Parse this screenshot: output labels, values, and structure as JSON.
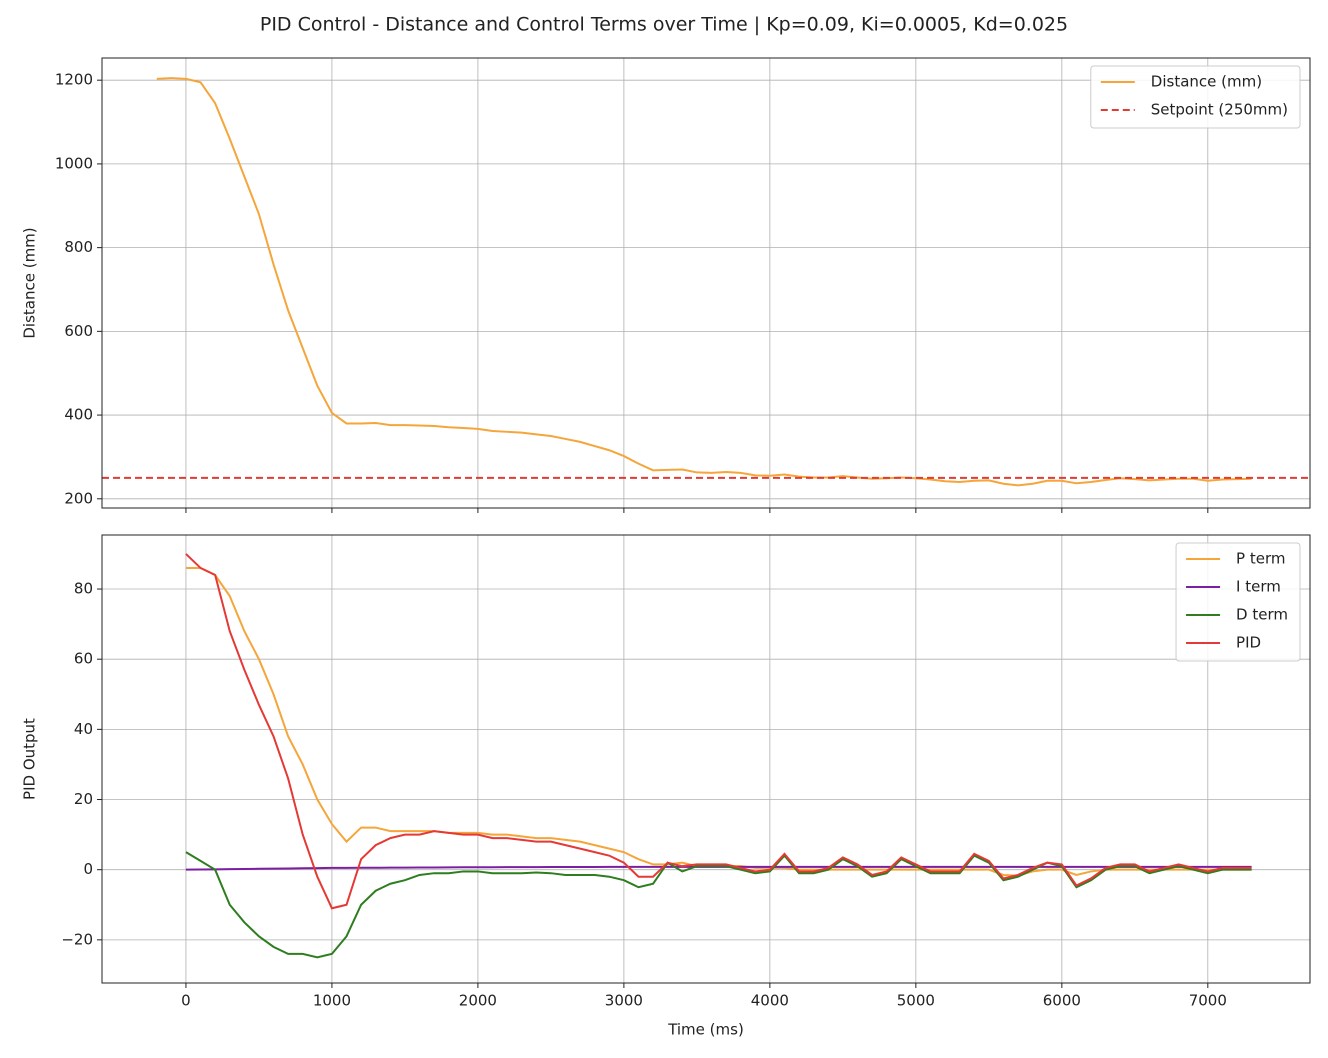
{
  "chart_data": [
    {
      "type": "line",
      "title": "PID Control - Distance and Control Terms over Time | Kp=0.09, Ki=0.0005, Kd=0.025",
      "ylabel": "Distance (mm)",
      "ylim": [
        178,
        1253
      ],
      "yticks": [
        200,
        400,
        600,
        800,
        1000,
        1200
      ],
      "grid": true,
      "legend": "upper right",
      "x": [
        -200,
        -100,
        0,
        100,
        200,
        300,
        400,
        500,
        600,
        700,
        800,
        900,
        1000,
        1100,
        1200,
        1300,
        1400,
        1500,
        1600,
        1700,
        1800,
        1900,
        2000,
        2100,
        2200,
        2300,
        2400,
        2500,
        2600,
        2700,
        2800,
        2900,
        3000,
        3100,
        3200,
        3300,
        3400,
        3500,
        3600,
        3700,
        3800,
        3900,
        4000,
        4100,
        4200,
        4300,
        4400,
        4500,
        4600,
        4700,
        4800,
        4900,
        5000,
        5100,
        5200,
        5300,
        5400,
        5500,
        5600,
        5700,
        5800,
        5900,
        6000,
        6100,
        6200,
        6300,
        6400,
        6500,
        6600,
        6700,
        6800,
        6900,
        7000,
        7100,
        7200,
        7300
      ],
      "series": [
        {
          "name": "Distance (mm)",
          "color": "#f5a53a",
          "values": [
            1203,
            1205,
            1203,
            1195,
            1145,
            1060,
            970,
            880,
            760,
            650,
            560,
            470,
            405,
            380,
            380,
            381,
            376,
            376,
            375,
            374,
            371,
            369,
            367,
            362,
            360,
            358,
            354,
            350,
            343,
            336,
            326,
            316,
            302,
            284,
            268,
            269,
            270,
            263,
            262,
            264,
            262,
            256,
            255,
            258,
            253,
            251,
            251,
            254,
            251,
            248,
            249,
            251,
            249,
            246,
            242,
            240,
            243,
            244,
            236,
            232,
            236,
            243,
            243,
            237,
            240,
            245,
            249,
            247,
            244,
            246,
            248,
            248,
            243,
            246,
            247,
            248
          ]
        }
      ],
      "hlines": [
        {
          "name": "Setpoint (250mm)",
          "color": "#e03c31",
          "value": 250,
          "dashed": true
        }
      ]
    },
    {
      "type": "line",
      "xlabel": "Time (ms)",
      "ylabel": "PID Output",
      "xlim": [
        -575,
        7700
      ],
      "xticks": [
        0,
        1000,
        2000,
        3000,
        4000,
        5000,
        6000,
        7000
      ],
      "ylim": [
        -32.3,
        95.4
      ],
      "yticks": [
        {
          "value": -20,
          "label": "−20"
        },
        0,
        20,
        40,
        60,
        80
      ],
      "grid": true,
      "legend": "upper right",
      "x": [
        0,
        100,
        200,
        300,
        400,
        500,
        600,
        700,
        800,
        900,
        1000,
        1100,
        1200,
        1300,
        1400,
        1500,
        1600,
        1700,
        1800,
        1900,
        2000,
        2100,
        2200,
        2300,
        2400,
        2500,
        2600,
        2700,
        2800,
        2900,
        3000,
        3100,
        3200,
        3300,
        3400,
        3500,
        3600,
        3700,
        3800,
        3900,
        4000,
        4100,
        4200,
        4300,
        4400,
        4500,
        4600,
        4700,
        4800,
        4900,
        5000,
        5100,
        5200,
        5300,
        5400,
        5500,
        5600,
        5700,
        5800,
        5900,
        6000,
        6100,
        6200,
        6300,
        6400,
        6500,
        6600,
        6700,
        6800,
        6900,
        7000,
        7100,
        7200,
        7300
      ],
      "series": [
        {
          "name": "P term",
          "color": "#f5a53a",
          "values": [
            86,
            86,
            84,
            78,
            68,
            60,
            50,
            38,
            30,
            20,
            13,
            8,
            12,
            12,
            11,
            11,
            11,
            11,
            10.5,
            10.5,
            10.5,
            10,
            10,
            9.5,
            9,
            9,
            8.5,
            8,
            7,
            6,
            5,
            3,
            1.5,
            1.5,
            2,
            1,
            1,
            1,
            1,
            0.5,
            0.5,
            0.5,
            0,
            0,
            0,
            0,
            0,
            0,
            0,
            0,
            0,
            0,
            0,
            0,
            0,
            0,
            -1.5,
            -1.7,
            -0.5,
            0,
            0,
            -1.5,
            -0.5,
            0,
            0,
            0,
            0,
            0,
            0,
            0,
            0,
            0,
            0,
            0
          ]
        },
        {
          "name": "I term",
          "color": "#7b1fa2",
          "values": [
            0,
            0.05,
            0.1,
            0.15,
            0.2,
            0.25,
            0.3,
            0.35,
            0.4,
            0.45,
            0.5,
            0.52,
            0.54,
            0.56,
            0.58,
            0.6,
            0.62,
            0.64,
            0.66,
            0.68,
            0.7,
            0.71,
            0.72,
            0.73,
            0.74,
            0.75,
            0.76,
            0.77,
            0.78,
            0.79,
            0.8,
            0.8,
            0.8,
            0.8,
            0.8,
            0.8,
            0.8,
            0.8,
            0.8,
            0.8,
            0.8,
            0.8,
            0.8,
            0.8,
            0.8,
            0.8,
            0.8,
            0.8,
            0.8,
            0.8,
            0.8,
            0.8,
            0.8,
            0.8,
            0.8,
            0.8,
            0.8,
            0.8,
            0.8,
            0.8,
            0.8,
            0.8,
            0.8,
            0.8,
            0.8,
            0.8,
            0.8,
            0.8,
            0.8,
            0.8,
            0.8,
            0.8,
            0.8,
            0.8
          ]
        },
        {
          "name": "D term",
          "color": "#2e7d1f",
          "values": [
            5,
            2.5,
            0,
            -10,
            -15,
            -19,
            -22,
            -24,
            -24,
            -25,
            -24,
            -19,
            -10,
            -6,
            -4,
            -3,
            -1.5,
            -1,
            -1,
            -0.5,
            -0.5,
            -1,
            -1,
            -1,
            -0.8,
            -1,
            -1.5,
            -1.5,
            -1.5,
            -2,
            -3,
            -5,
            -4,
            2,
            -0.5,
            1,
            1,
            1,
            0,
            -1,
            -0.5,
            4,
            -1,
            -1,
            0,
            3,
            1,
            -2,
            -1,
            3,
            1,
            -1,
            -1,
            -1,
            4,
            2,
            -3,
            -2,
            0,
            2,
            1,
            -5,
            -3,
            0,
            1,
            1,
            -1,
            0,
            1,
            0,
            -1,
            0,
            0,
            0
          ]
        },
        {
          "name": "PID",
          "color": "#e53935",
          "values": [
            90,
            86,
            84,
            68,
            57,
            47,
            38,
            26,
            10,
            -2,
            -11,
            -10,
            3,
            7,
            9,
            10,
            10,
            11,
            10.5,
            10,
            10,
            9,
            9,
            8.5,
            8,
            8,
            7,
            6,
            5,
            4,
            2,
            -2,
            -2,
            2,
            1,
            1.5,
            1.5,
            1.5,
            0.5,
            -0.5,
            0,
            4.5,
            -0.5,
            -0.5,
            0.5,
            3.5,
            1.5,
            -1.5,
            -0.5,
            3.5,
            1.5,
            -0.5,
            -0.5,
            -0.5,
            4.5,
            2.5,
            -2.5,
            -1.5,
            0.5,
            2,
            1.5,
            -4.5,
            -2.5,
            0.5,
            1.5,
            1.5,
            -0.5,
            0.5,
            1.5,
            0.5,
            -0.5,
            0.5,
            0.5,
            0.5
          ]
        }
      ]
    }
  ]
}
